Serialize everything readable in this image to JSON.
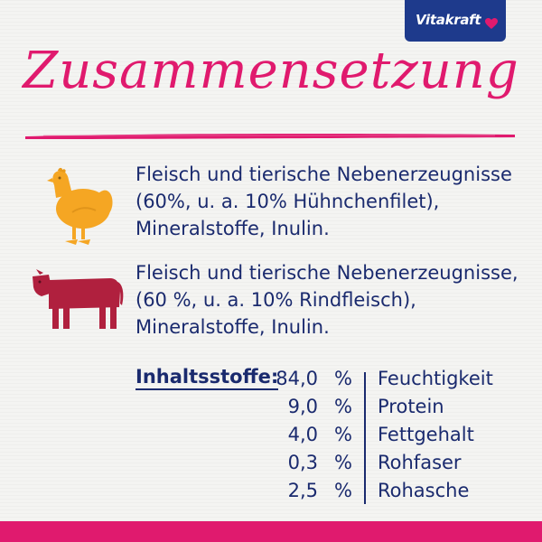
{
  "brand": {
    "logo_text": "Vitakraft",
    "color": "#1e3a8c",
    "heart_color": "#e01a6e"
  },
  "title": "Zusammensetzung",
  "accent_color": "#e01a6e",
  "text_color": "#1a2a6e",
  "compositions": [
    {
      "icon": "chicken-icon",
      "lines": [
        "Fleisch und tierische Nebenerzeugnisse",
        "(60%, u. a. 10% Hühnchenfilet),",
        "Mineralstoffe, Inulin."
      ]
    },
    {
      "icon": "cow-icon",
      "lines": [
        "Fleisch und tierische Nebenerzeugnisse,",
        "(60 %, u. a. 10% Rindfleisch),",
        "Mineralstoffe, Inulin."
      ]
    }
  ],
  "nutrients": {
    "heading": "Inhaltsstoffe:",
    "rows": [
      {
        "value": "84,0",
        "unit": "%",
        "label": "Feuchtigkeit"
      },
      {
        "value": "9,0",
        "unit": "%",
        "label": "Protein"
      },
      {
        "value": "4,0",
        "unit": "%",
        "label": "Fettgehalt"
      },
      {
        "value": "0,3",
        "unit": "%",
        "label": "Rohfaser"
      },
      {
        "value": "2,5",
        "unit": "%",
        "label": "Rohasche"
      }
    ]
  }
}
